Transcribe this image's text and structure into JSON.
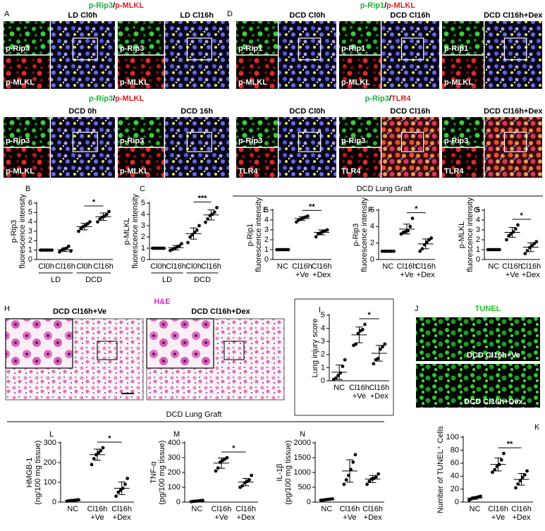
{
  "figure": {
    "panel_A": {
      "letter": "A",
      "rows": [
        {
          "title": [
            {
              "text": "p-Rip3",
              "color": "#1fae3a"
            },
            {
              "text": "/",
              "color": "#000000"
            },
            {
              "text": "p-MLKL",
              "color": "#e01e1e"
            }
          ],
          "blocks": [
            {
              "caption": "LD Cl0h",
              "channels": [
                "p-Rip3",
                "p-MLKL"
              ]
            },
            {
              "caption": "LD Cl16h",
              "channels": [
                "p-Rip3",
                "p-MLKL"
              ]
            }
          ]
        },
        {
          "title": [
            {
              "text": "p-Rip3",
              "color": "#1fae3a"
            },
            {
              "text": "/",
              "color": "#000000"
            },
            {
              "text": "p-MLKL",
              "color": "#e01e1e"
            }
          ],
          "blocks": [
            {
              "caption": "DCD 0h",
              "channels": [
                "p-Rip3",
                "p-MLKL"
              ]
            },
            {
              "caption": "DCD 16h",
              "channels": [
                "p-Rip3",
                "p-MLKL"
              ]
            }
          ]
        }
      ]
    },
    "panel_D": {
      "letter": "D",
      "rows": [
        {
          "title": [
            {
              "text": "p-Rip1",
              "color": "#1fae3a"
            },
            {
              "text": "/",
              "color": "#000000"
            },
            {
              "text": "p-MLKL",
              "color": "#e01e1e"
            }
          ],
          "blocks": [
            {
              "caption": "DCD Cl0h",
              "channels": [
                "p-Rip1",
                "p-MLKL"
              ]
            },
            {
              "caption": "DCD Cl16h",
              "channels": [
                "p-Rip1",
                "p-MLKL"
              ]
            },
            {
              "caption": "DCD Cl16h+Dex",
              "channels": [
                "p-Rip1",
                "p-MLKL"
              ]
            }
          ]
        },
        {
          "title": [
            {
              "text": "p-Rip3",
              "color": "#1fae3a"
            },
            {
              "text": "/",
              "color": "#000000"
            },
            {
              "text": "TLR4",
              "color": "#e01e1e"
            }
          ],
          "blocks": [
            {
              "caption": "DCD Cl0h",
              "channels": [
                "p-Rip3",
                "TLR4"
              ]
            },
            {
              "caption": "DCD Cl16h",
              "channels": [
                "p-Rip3",
                "TLR4"
              ]
            },
            {
              "caption": "DCD Cl16h+Dex",
              "channels": [
                "p-Rip3",
                "TLR4"
              ]
            }
          ]
        }
      ]
    },
    "panel_H": {
      "letter": "H",
      "title": {
        "text": "H&E",
        "color": "#d42ad4"
      },
      "captions": [
        "DCD Cl16h+Ve",
        "DCD Cl16h+Dex"
      ]
    },
    "panel_J": {
      "letter": "J",
      "title": {
        "text": "TUNEL",
        "color": "#1fc21f"
      },
      "captions": [
        "DCD Cl16h+Ve",
        "DCD Cl16h+Dex"
      ]
    },
    "section_headers": [
      "DCD Lung Graft",
      "DCD Lung Graft"
    ]
  },
  "chart_data": [
    {
      "type": "strip",
      "panel": "B",
      "y_label": [
        "p-Rip3",
        "fluorescence intensity"
      ],
      "categories": [
        [
          "Cl0h"
        ],
        [
          "Cl16h"
        ],
        [
          "Cl0h"
        ],
        [
          "Cl16h"
        ]
      ],
      "group_labels": [
        "LD",
        "DCD"
      ],
      "values": [
        [
          1,
          1,
          1,
          1,
          1,
          1
        ],
        [
          0.8,
          1.0,
          1.1,
          1.2,
          1.4,
          0.9
        ],
        [
          3.0,
          3.3,
          3.5,
          3.6,
          3.8,
          4.0
        ],
        [
          4.0,
          4.3,
          4.5,
          4.6,
          4.8,
          5.1
        ]
      ],
      "means": [
        1,
        1.05,
        3.5,
        4.55
      ],
      "sd": [
        0,
        0.2,
        0.35,
        0.4
      ],
      "ylim": [
        0,
        6
      ],
      "yticks": [
        0,
        1,
        2,
        3,
        4,
        5,
        6
      ],
      "significance": [
        {
          "between": [
            2,
            3
          ],
          "label": "*"
        }
      ]
    },
    {
      "type": "strip",
      "panel": "C",
      "y_label": [
        "p-MLKL",
        "fluorescence intensity"
      ],
      "categories": [
        [
          "Cl0h"
        ],
        [
          "Cl16h"
        ],
        [
          "Cl0h"
        ],
        [
          "Cl16h"
        ]
      ],
      "group_labels": [
        "LD",
        "DCD"
      ],
      "values": [
        [
          1,
          1,
          1,
          1,
          1,
          1
        ],
        [
          0.8,
          0.9,
          1.0,
          1.1,
          1.2,
          1.4
        ],
        [
          1.5,
          2.0,
          2.2,
          2.4,
          2.6,
          3.0
        ],
        [
          3.3,
          3.6,
          3.9,
          4.0,
          4.2,
          4.6
        ]
      ],
      "means": [
        1,
        1.05,
        2.3,
        3.95
      ],
      "sd": [
        0,
        0.2,
        0.5,
        0.45
      ],
      "ylim": [
        0,
        5
      ],
      "yticks": [
        0,
        1,
        2,
        3,
        4,
        5
      ],
      "significance": [
        {
          "between": [
            2,
            3
          ],
          "label": "***"
        }
      ]
    },
    {
      "type": "strip",
      "panel": "E",
      "y_label": [
        "p-Rip1",
        "fluorescence intensity"
      ],
      "categories": [
        [
          "NC"
        ],
        [
          "Cl16h",
          "+Ve"
        ],
        [
          "Cl16h",
          "+Dex"
        ]
      ],
      "values": [
        [
          1,
          1,
          1,
          1,
          1,
          1
        ],
        [
          3.8,
          4.0,
          4.1,
          4.2,
          4.3,
          4.4
        ],
        [
          2.3,
          2.6,
          2.7,
          2.8,
          2.9,
          3.0
        ]
      ],
      "means": [
        1,
        4.15,
        2.75
      ],
      "sd": [
        0,
        0.2,
        0.25
      ],
      "ylim": [
        0,
        5
      ],
      "yticks": [
        0,
        1,
        2,
        3,
        4,
        5
      ],
      "significance": [
        {
          "between": [
            1,
            2
          ],
          "label": "**"
        }
      ]
    },
    {
      "type": "strip",
      "panel": "F",
      "y_label": [
        "p-Rip3",
        "fluorescence intensity"
      ],
      "categories": [
        [
          "NC"
        ],
        [
          "Cl16h",
          "+Ve"
        ],
        [
          "Cl16h",
          "+Dex"
        ]
      ],
      "values": [
        [
          1,
          1,
          1,
          1,
          1,
          1
        ],
        [
          3.1,
          3.3,
          3.4,
          3.5,
          4.0,
          5.0
        ],
        [
          1.0,
          1.3,
          1.8,
          2.1,
          2.4,
          2.6
        ]
      ],
      "means": [
        1,
        3.7,
        1.9
      ],
      "sd": [
        0,
        0.6,
        0.6
      ],
      "ylim": [
        0,
        6
      ],
      "yticks": [
        0,
        2,
        4,
        6
      ],
      "significance": [
        {
          "between": [
            1,
            2
          ],
          "label": "*"
        }
      ]
    },
    {
      "type": "strip",
      "panel": "G",
      "y_label": [
        "p-MLKL",
        "fluorescence intensity"
      ],
      "categories": [
        [
          "NC"
        ],
        [
          "Cl16h",
          "+Ve"
        ],
        [
          "Cl16h",
          "+Dex"
        ]
      ],
      "values": [
        [
          1,
          1,
          1,
          1,
          1,
          1
        ],
        [
          2.0,
          2.4,
          2.6,
          2.8,
          3.1,
          3.5
        ],
        [
          0.6,
          0.9,
          1.2,
          1.4,
          1.6,
          1.8
        ]
      ],
      "means": [
        1,
        2.75,
        1.25
      ],
      "sd": [
        0,
        0.5,
        0.45
      ],
      "ylim": [
        0,
        5
      ],
      "yticks": [
        0,
        1,
        2,
        3,
        4,
        5
      ],
      "significance": [
        {
          "between": [
            1,
            2
          ],
          "label": "*"
        }
      ]
    },
    {
      "type": "strip",
      "panel": "I",
      "y_label": [
        "Lung injury score"
      ],
      "categories": [
        [
          "NC"
        ],
        [
          "Cl16h",
          "+Ve"
        ],
        [
          "Cl16h",
          "+Dex"
        ]
      ],
      "values": [
        [
          0.1,
          0.2,
          0.4,
          0.6,
          1.1,
          1.6
        ],
        [
          2.7,
          2.8,
          3.6,
          3.8,
          3.9,
          4.3
        ],
        [
          1.3,
          1.6,
          1.7,
          2.4,
          2.6,
          2.8
        ]
      ],
      "means": [
        0.65,
        3.5,
        2.1
      ],
      "sd": [
        0.55,
        0.6,
        0.6
      ],
      "ylim": [
        0,
        5
      ],
      "yticks": [
        0,
        1,
        2,
        3,
        4,
        5
      ],
      "significance": [
        {
          "between": [
            1,
            2
          ],
          "label": "*"
        }
      ]
    },
    {
      "type": "strip",
      "panel": "L",
      "y_label": [
        "HMGB-1",
        "(ng/100 mg tissue)"
      ],
      "categories": [
        [
          "NC"
        ],
        [
          "Cl16h",
          "+Ve"
        ],
        [
          "Cl16h",
          "+Dex"
        ]
      ],
      "values": [
        [
          5,
          7,
          8,
          9,
          10,
          12
        ],
        [
          190,
          220,
          240,
          250,
          260,
          275
        ],
        [
          30,
          50,
          60,
          70,
          90,
          120
        ]
      ],
      "means": [
        8.5,
        240,
        70
      ],
      "sd": [
        2.5,
        28,
        32
      ],
      "ylim": [
        0,
        300
      ],
      "yticks": [
        0,
        100,
        200,
        300
      ],
      "significance": [
        {
          "between": [
            1,
            2
          ],
          "label": "*"
        }
      ]
    },
    {
      "type": "strip",
      "panel": "M",
      "y_label": [
        "TNF-α",
        "(pg/100 mg tissue)"
      ],
      "categories": [
        [
          "NC"
        ],
        [
          "Cl16h",
          "+Ve"
        ],
        [
          "Cl16h",
          "+Dex"
        ]
      ],
      "values": [
        [
          3,
          5,
          6,
          8,
          10,
          12
        ],
        [
          210,
          230,
          270,
          280,
          290,
          300
        ],
        [
          100,
          110,
          130,
          140,
          150,
          180
        ]
      ],
      "means": [
        7,
        263,
        135
      ],
      "sd": [
        3,
        35,
        25
      ],
      "ylim": [
        0,
        400
      ],
      "yticks": [
        0,
        100,
        200,
        300,
        400
      ],
      "significance": [
        {
          "between": [
            1,
            2
          ],
          "label": "*"
        }
      ]
    },
    {
      "type": "strip",
      "panel": "N",
      "y_label": [
        "IL-1β",
        "(pg/100 mg tissue)"
      ],
      "categories": [
        [
          "NC"
        ],
        [
          "Cl16h",
          "+Ve"
        ],
        [
          "Cl16h",
          "+Dex"
        ]
      ],
      "values": [
        [
          60,
          70,
          80,
          90,
          100,
          110
        ],
        [
          600,
          750,
          900,
          1100,
          1350,
          1600
        ],
        [
          600,
          700,
          780,
          800,
          850,
          950
        ]
      ],
      "means": [
        85,
        1050,
        780
      ],
      "sd": [
        18,
        380,
        120
      ],
      "ylim": [
        0,
        2000
      ],
      "yticks": [
        0,
        500,
        1000,
        1500,
        2000
      ],
      "significance": []
    },
    {
      "type": "strip",
      "panel": "K",
      "y_label": [
        "Number of TUNEL⁺ Cells"
      ],
      "categories": [
        [
          "NC"
        ],
        [
          "Cl16h",
          "+Ve"
        ],
        [
          "Cl16h",
          "+Dex"
        ]
      ],
      "values": [
        [
          3,
          5,
          6,
          7,
          8,
          9
        ],
        [
          46,
          50,
          55,
          58,
          65,
          75
        ],
        [
          22,
          28,
          33,
          38,
          42,
          48
        ]
      ],
      "means": [
        6.3,
        58,
        35
      ],
      "sd": [
        2,
        10,
        9
      ],
      "ylim": [
        0,
        100
      ],
      "yticks": [
        0,
        20,
        40,
        60,
        80,
        100
      ],
      "significance": [
        {
          "between": [
            1,
            2
          ],
          "label": "**"
        }
      ]
    }
  ]
}
